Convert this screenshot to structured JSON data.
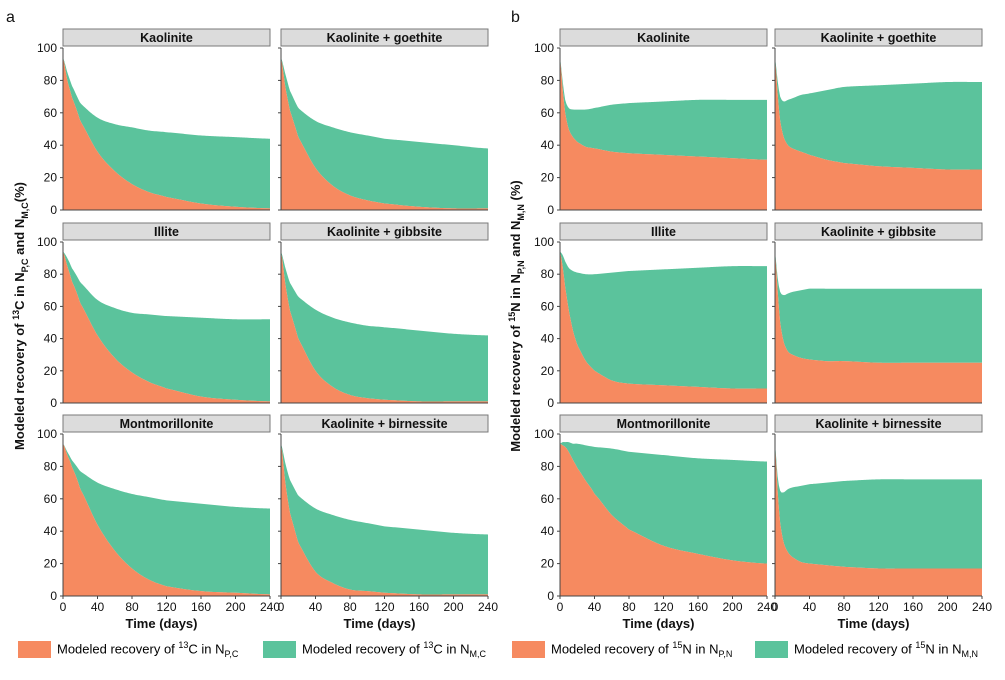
{
  "colors": {
    "pool_p": "#F68A60",
    "pool_m": "#5BC39C",
    "strip_bg": "#DCDCDC",
    "strip_border": "#7A7A7A",
    "axis": "#444444"
  },
  "panel_letters": {
    "a": "a",
    "b": "b"
  },
  "axis_labels": {
    "a_y": {
      "prefix": "Modeled recovery of ",
      "iso": "13",
      "mid": "C in N",
      "sub1": "P,C",
      "and": " and N",
      "sub2": "M,C",
      "end": "(%)"
    },
    "b_y": {
      "prefix": "Modeled recovery of ",
      "iso": "15",
      "mid": "N in N",
      "sub1": "P,N",
      "and": " and N",
      "sub2": "M,N",
      "end": " (%)"
    },
    "x": "Time (days)"
  },
  "legend": {
    "a": [
      {
        "prefix": "Modeled recovery of ",
        "iso": "13",
        "elem": "C in N",
        "sub": "P,C",
        "color": "pool_p"
      },
      {
        "prefix": "Modeled recovery of ",
        "iso": "13",
        "elem": "C in N",
        "sub": "M,C",
        "color": "pool_m"
      }
    ],
    "b": [
      {
        "prefix": "Modeled recovery of ",
        "iso": "15",
        "elem": "N in N",
        "sub": "P,N",
        "color": "pool_p"
      },
      {
        "prefix": "Modeled recovery of ",
        "iso": "15",
        "elem": "N in N",
        "sub": "M,N",
        "color": "pool_m"
      }
    ]
  },
  "chart_data": [
    {
      "type": "area",
      "panel": "a",
      "title": "Kaolinite",
      "xlim": [
        0,
        240
      ],
      "ylim": [
        0,
        100
      ],
      "xticks": [
        0,
        40,
        80,
        120,
        160,
        200,
        240
      ],
      "yticks": [
        0,
        20,
        40,
        60,
        80,
        100
      ],
      "x": [
        0,
        5,
        10,
        20,
        40,
        60,
        80,
        100,
        120,
        160,
        200,
        240
      ],
      "series": [
        {
          "pool": "particulate",
          "values": [
            94,
            80,
            70,
            55,
            36,
            24,
            16,
            11,
            8,
            4,
            2,
            1
          ]
        },
        {
          "pool": "total",
          "values": [
            94,
            85,
            77,
            66,
            57,
            53,
            51,
            49,
            48,
            46,
            45,
            44
          ]
        }
      ]
    },
    {
      "type": "area",
      "panel": "a",
      "title": "Kaolinite + goethite",
      "xlim": [
        0,
        240
      ],
      "ylim": [
        0,
        100
      ],
      "xticks": [
        0,
        40,
        80,
        120,
        160,
        200,
        240
      ],
      "yticks": [
        0,
        20,
        40,
        60,
        80,
        100
      ],
      "x": [
        0,
        5,
        10,
        20,
        40,
        60,
        80,
        100,
        120,
        160,
        200,
        240
      ],
      "series": [
        {
          "pool": "particulate",
          "values": [
            94,
            76,
            62,
            45,
            26,
            15,
            9,
            6,
            4,
            2,
            1,
            1
          ]
        },
        {
          "pool": "total",
          "values": [
            94,
            84,
            74,
            63,
            55,
            51,
            48,
            46,
            44,
            42,
            40,
            38
          ]
        }
      ]
    },
    {
      "type": "area",
      "panel": "a",
      "title": "Illite",
      "xlim": [
        0,
        240
      ],
      "ylim": [
        0,
        100
      ],
      "xticks": [
        0,
        40,
        80,
        120,
        160,
        200,
        240
      ],
      "yticks": [
        0,
        20,
        40,
        60,
        80,
        100
      ],
      "x": [
        0,
        5,
        10,
        20,
        40,
        60,
        80,
        100,
        120,
        160,
        200,
        240
      ],
      "series": [
        {
          "pool": "particulate",
          "values": [
            94,
            85,
            76,
            62,
            42,
            28,
            19,
            13,
            9,
            4,
            2,
            1
          ]
        },
        {
          "pool": "total",
          "values": [
            94,
            90,
            84,
            75,
            64,
            59,
            56,
            55,
            54,
            53,
            52,
            52
          ]
        }
      ]
    },
    {
      "type": "area",
      "panel": "a",
      "title": "Kaolinite + gibbsite",
      "xlim": [
        0,
        240
      ],
      "ylim": [
        0,
        100
      ],
      "xticks": [
        0,
        40,
        80,
        120,
        160,
        200,
        240
      ],
      "yticks": [
        0,
        20,
        40,
        60,
        80,
        100
      ],
      "x": [
        0,
        5,
        10,
        20,
        40,
        60,
        80,
        100,
        120,
        160,
        200,
        240
      ],
      "series": [
        {
          "pool": "particulate",
          "values": [
            94,
            74,
            58,
            40,
            20,
            10,
            5,
            3,
            2,
            1,
            1,
            1
          ]
        },
        {
          "pool": "total",
          "values": [
            94,
            84,
            75,
            66,
            58,
            53,
            50,
            48,
            47,
            45,
            43,
            42
          ]
        }
      ]
    },
    {
      "type": "area",
      "panel": "a",
      "title": "Montmorillonite",
      "xlim": [
        0,
        240
      ],
      "ylim": [
        0,
        100
      ],
      "xticks": [
        0,
        40,
        80,
        120,
        160,
        200,
        240
      ],
      "yticks": [
        0,
        20,
        40,
        60,
        80,
        100
      ],
      "x": [
        0,
        5,
        10,
        20,
        40,
        60,
        80,
        100,
        120,
        160,
        200,
        240
      ],
      "series": [
        {
          "pool": "particulate",
          "values": [
            94,
            87,
            80,
            66,
            44,
            28,
            17,
            10,
            6,
            3,
            2,
            1
          ]
        },
        {
          "pool": "total",
          "values": [
            94,
            89,
            84,
            77,
            70,
            66,
            63,
            61,
            59,
            57,
            55,
            54
          ]
        }
      ]
    },
    {
      "type": "area",
      "panel": "a",
      "title": "Kaolinite + birnessite",
      "xlim": [
        0,
        240
      ],
      "ylim": [
        0,
        100
      ],
      "xticks": [
        0,
        40,
        80,
        120,
        160,
        200,
        240
      ],
      "yticks": [
        0,
        20,
        40,
        60,
        80,
        100
      ],
      "x": [
        0,
        5,
        10,
        20,
        40,
        60,
        80,
        100,
        120,
        160,
        200,
        240
      ],
      "series": [
        {
          "pool": "particulate",
          "values": [
            94,
            70,
            52,
            33,
            15,
            8,
            4,
            3,
            2,
            1,
            1,
            1
          ]
        },
        {
          "pool": "total",
          "values": [
            94,
            82,
            72,
            62,
            54,
            50,
            47,
            45,
            43,
            41,
            39,
            38
          ]
        }
      ]
    },
    {
      "type": "area",
      "panel": "b",
      "title": "Kaolinite",
      "xlim": [
        0,
        240
      ],
      "ylim": [
        0,
        100
      ],
      "xticks": [
        0,
        40,
        80,
        120,
        160,
        200,
        240
      ],
      "yticks": [
        0,
        20,
        40,
        60,
        80,
        100
      ],
      "x": [
        0,
        3,
        6,
        10,
        15,
        20,
        30,
        40,
        60,
        80,
        120,
        160,
        200,
        240
      ],
      "series": [
        {
          "pool": "particulate",
          "values": [
            94,
            75,
            60,
            50,
            45,
            42,
            39,
            38,
            36,
            35,
            34,
            33,
            32,
            31
          ]
        },
        {
          "pool": "total",
          "values": [
            94,
            80,
            68,
            63,
            62,
            62,
            62,
            63,
            65,
            66,
            67,
            68,
            68,
            68
          ]
        }
      ]
    },
    {
      "type": "area",
      "panel": "b",
      "title": "Kaolinite + goethite",
      "xlim": [
        0,
        240
      ],
      "ylim": [
        0,
        100
      ],
      "xticks": [
        0,
        40,
        80,
        120,
        160,
        200,
        240
      ],
      "yticks": [
        0,
        20,
        40,
        60,
        80,
        100
      ],
      "x": [
        0,
        3,
        6,
        10,
        15,
        20,
        30,
        40,
        60,
        80,
        120,
        160,
        200,
        240
      ],
      "series": [
        {
          "pool": "particulate",
          "values": [
            94,
            72,
            55,
            45,
            40,
            38,
            36,
            34,
            31,
            29,
            27,
            26,
            25,
            25
          ]
        },
        {
          "pool": "total",
          "values": [
            94,
            80,
            70,
            67,
            68,
            69,
            71,
            72,
            74,
            76,
            77,
            78,
            79,
            79
          ]
        }
      ]
    },
    {
      "type": "area",
      "panel": "b",
      "title": "Illite",
      "xlim": [
        0,
        240
      ],
      "ylim": [
        0,
        100
      ],
      "xticks": [
        0,
        40,
        80,
        120,
        160,
        200,
        240
      ],
      "yticks": [
        0,
        20,
        40,
        60,
        80,
        100
      ],
      "x": [
        0,
        3,
        6,
        10,
        15,
        20,
        30,
        40,
        60,
        80,
        120,
        160,
        200,
        240
      ],
      "series": [
        {
          "pool": "particulate",
          "values": [
            94,
            85,
            72,
            58,
            45,
            36,
            26,
            20,
            14,
            12,
            11,
            10,
            9,
            9
          ]
        },
        {
          "pool": "total",
          "values": [
            94,
            92,
            88,
            84,
            82,
            81,
            80,
            80,
            81,
            82,
            83,
            84,
            85,
            85
          ]
        }
      ]
    },
    {
      "type": "area",
      "panel": "b",
      "title": "Kaolinite + gibbsite",
      "xlim": [
        0,
        240
      ],
      "ylim": [
        0,
        100
      ],
      "xticks": [
        0,
        40,
        80,
        120,
        160,
        200,
        240
      ],
      "yticks": [
        0,
        20,
        40,
        60,
        80,
        100
      ],
      "x": [
        0,
        3,
        6,
        10,
        15,
        20,
        30,
        40,
        60,
        80,
        120,
        160,
        200,
        240
      ],
      "series": [
        {
          "pool": "particulate",
          "values": [
            94,
            70,
            50,
            38,
            32,
            30,
            28,
            27,
            26,
            26,
            25,
            25,
            25,
            25
          ]
        },
        {
          "pool": "total",
          "values": [
            94,
            78,
            69,
            67,
            68,
            69,
            70,
            71,
            71,
            71,
            71,
            71,
            71,
            71
          ]
        }
      ]
    },
    {
      "type": "area",
      "panel": "b",
      "title": "Montmorillonite",
      "xlim": [
        0,
        240
      ],
      "ylim": [
        0,
        100
      ],
      "xticks": [
        0,
        40,
        80,
        120,
        160,
        200,
        240
      ],
      "yticks": [
        0,
        20,
        40,
        60,
        80,
        100
      ],
      "x": [
        0,
        3,
        6,
        10,
        15,
        20,
        30,
        40,
        60,
        80,
        120,
        160,
        200,
        240
      ],
      "series": [
        {
          "pool": "particulate",
          "values": [
            94,
            93,
            92,
            89,
            84,
            79,
            71,
            63,
            50,
            41,
            31,
            26,
            22,
            20
          ]
        },
        {
          "pool": "total",
          "values": [
            94,
            95,
            95,
            95,
            94,
            94,
            93,
            92,
            91,
            89,
            87,
            85,
            84,
            83
          ]
        }
      ]
    },
    {
      "type": "area",
      "panel": "b",
      "title": "Kaolinite + birnessite",
      "xlim": [
        0,
        240
      ],
      "ylim": [
        0,
        100
      ],
      "xticks": [
        0,
        40,
        80,
        120,
        160,
        200,
        240
      ],
      "yticks": [
        0,
        20,
        40,
        60,
        80,
        100
      ],
      "x": [
        0,
        3,
        6,
        10,
        15,
        20,
        30,
        40,
        60,
        80,
        120,
        160,
        200,
        240
      ],
      "series": [
        {
          "pool": "particulate",
          "values": [
            94,
            65,
            45,
            33,
            27,
            24,
            21,
            20,
            19,
            18,
            17,
            17,
            17,
            17
          ]
        },
        {
          "pool": "total",
          "values": [
            94,
            74,
            65,
            64,
            66,
            67,
            68,
            69,
            70,
            71,
            72,
            72,
            72,
            72
          ]
        }
      ]
    }
  ]
}
